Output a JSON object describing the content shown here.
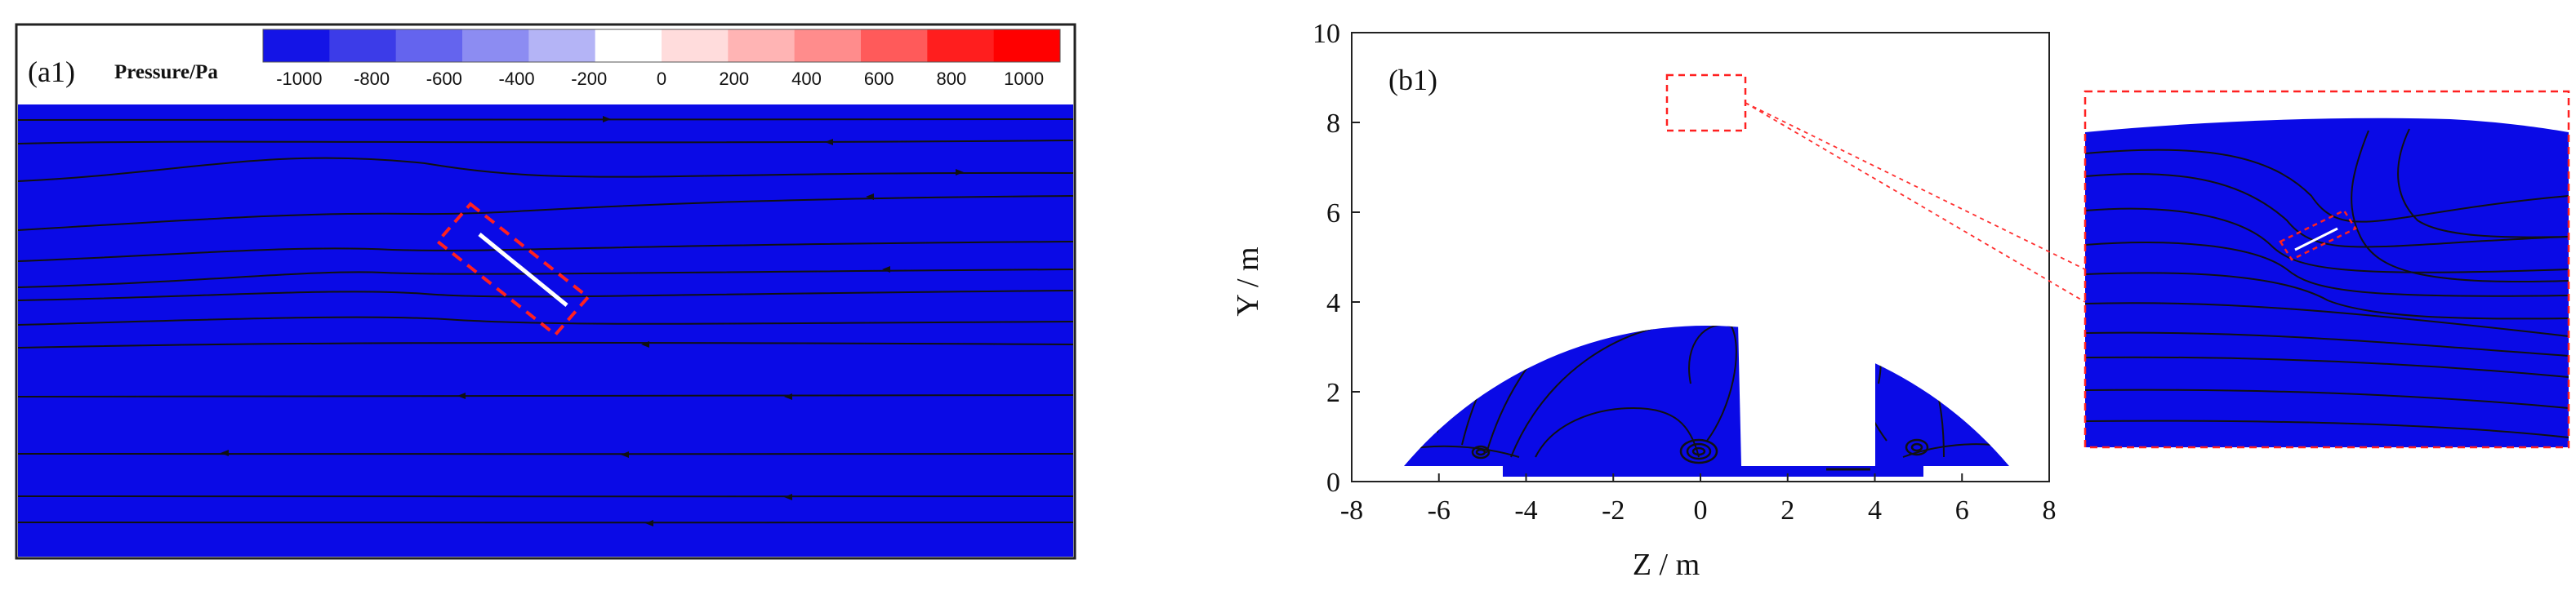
{
  "chart_data": [
    {
      "type": "heatmap",
      "panel_label": "(a1)",
      "colorbar": {
        "title": "Pressure/Pa",
        "ticks": [
          "-1000",
          "-800",
          "-600",
          "-400",
          "-200",
          "0",
          "200",
          "400",
          "600",
          "800",
          "1000"
        ],
        "range": [
          -1100,
          1100
        ],
        "colors": [
          "#1414e6",
          "#3c3ce8",
          "#6464ee",
          "#8c8cf2",
          "#b4b4f6",
          "#ffffff",
          "#ffdcdc",
          "#ffb4b4",
          "#ff8c8c",
          "#ff5a5a",
          "#ff1e1e",
          "#ff0000"
        ]
      },
      "field_color": "#0a0ae6",
      "streamlines": "horizontal flow, deflected around inclined plate",
      "highlight_box_color": "#ff2020"
    },
    {
      "type": "heatmap",
      "panel_label": "(b1)",
      "xlabel": "Z / m",
      "ylabel": "Y / m",
      "xlim": [
        -8,
        8
      ],
      "ylim": [
        0,
        10
      ],
      "xticks": [
        "-8",
        "-6",
        "-4",
        "-2",
        "0",
        "2",
        "4",
        "6",
        "8"
      ],
      "yticks": [
        "0",
        "2",
        "4",
        "6",
        "8",
        "10"
      ],
      "field_color": "#0a0ae6",
      "domain_shape": "tunnel cross-section (semicircle, radius about 6.8 m, centre at y = 2.4 m) with vehicle body cut-out",
      "vehicle_cutout": {
        "z_range": [
          1.0,
          4.0
        ],
        "y_range": [
          0.3,
          4.2
        ]
      },
      "zoom_region": {
        "z_range": [
          -0.8,
          1.0
        ],
        "y_range": [
          7.9,
          9.2
        ]
      },
      "highlight_box_color": "#ff2020"
    }
  ]
}
